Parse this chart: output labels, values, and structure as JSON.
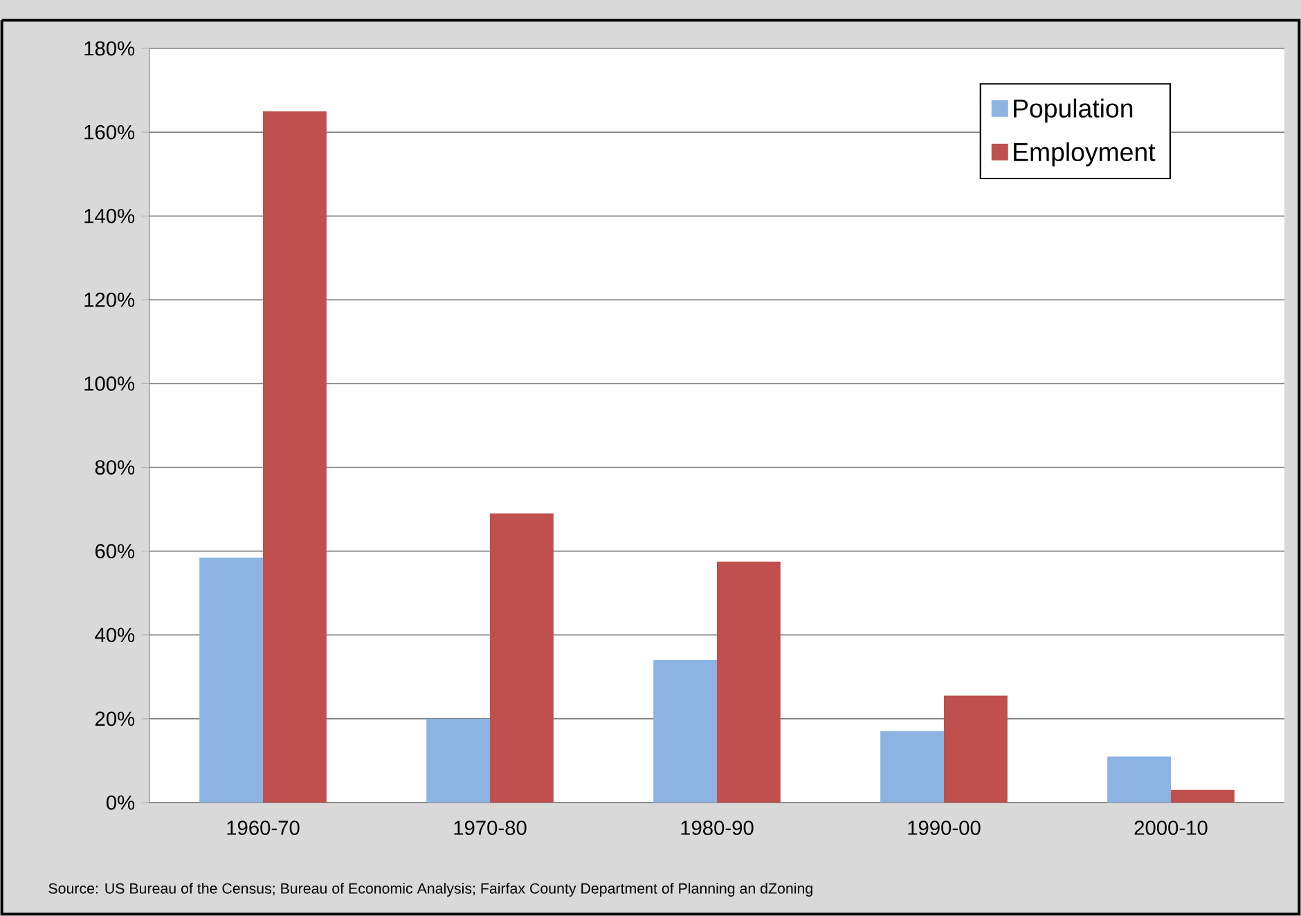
{
  "chart_data": {
    "type": "bar",
    "categories": [
      "1960-70",
      "1970-80",
      "1980-90",
      "1990-00",
      "2000-10"
    ],
    "series": [
      {
        "name": "Population",
        "color": "#8db3e2",
        "values": [
          58.5,
          20,
          34,
          17,
          11
        ]
      },
      {
        "name": "Employment",
        "color": "#c0504d",
        "values": [
          165,
          69,
          57.5,
          25.5,
          3
        ]
      }
    ],
    "ylim": [
      0,
      180
    ],
    "yticks": [
      {
        "value": 0,
        "label": "0%"
      },
      {
        "value": 20,
        "label": "20%"
      },
      {
        "value": 40,
        "label": "40%"
      },
      {
        "value": 60,
        "label": "60%"
      },
      {
        "value": 80,
        "label": "80%"
      },
      {
        "value": 100,
        "label": "100%"
      },
      {
        "value": 120,
        "label": "120%"
      },
      {
        "value": 140,
        "label": "140%"
      },
      {
        "value": 160,
        "label": "160%"
      },
      {
        "value": 180,
        "label": "180%"
      }
    ],
    "grid": "y",
    "legend": "top right",
    "annotations": [
      "Source:  US Bureau of the  Census; Bureau of Economic Analysis; Fairfax County Department  of Planning an dZoning"
    ]
  }
}
